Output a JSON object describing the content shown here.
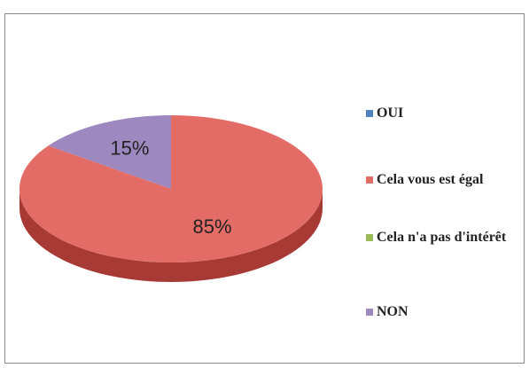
{
  "chart_data": {
    "type": "pie",
    "categories": [
      "OUI",
      "Cela vous est égal",
      "Cela n'a pas d'intérêt",
      "NON"
    ],
    "values": [
      0,
      85,
      0,
      15
    ],
    "value_labels": [
      null,
      "85%",
      null,
      "15%"
    ],
    "colors": [
      "#4f81bd",
      "#e46c66",
      "#9bbb59",
      "#9e88c0"
    ],
    "side_colors": [
      "#3a6291",
      "#a83a36",
      "#73903e",
      "#6d5590"
    ],
    "legend": "right"
  }
}
